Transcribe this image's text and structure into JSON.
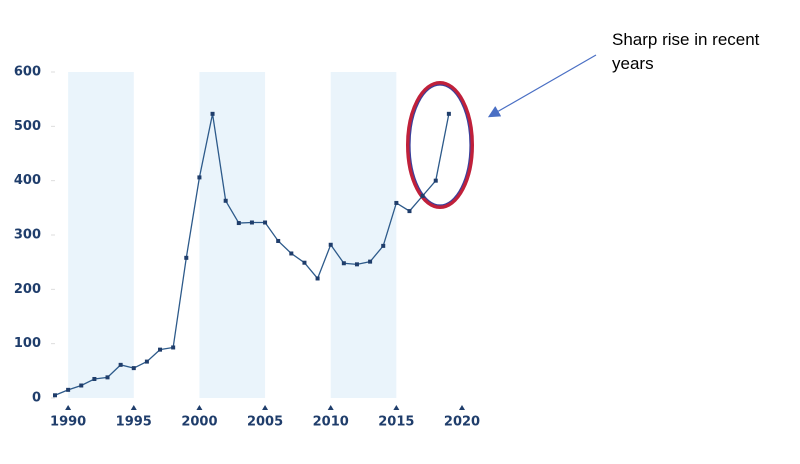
{
  "chart_data": {
    "type": "line",
    "x": [
      1989,
      1990,
      1991,
      1992,
      1993,
      1994,
      1995,
      1996,
      1997,
      1998,
      1999,
      2000,
      2001,
      2002,
      2003,
      2004,
      2005,
      2006,
      2007,
      2008,
      2009,
      2010,
      2011,
      2012,
      2013,
      2014,
      2015,
      2016,
      2017,
      2018,
      2019
    ],
    "values": [
      5,
      15,
      23,
      35,
      38,
      61,
      55,
      67,
      89,
      93,
      258,
      406,
      523,
      363,
      322,
      323,
      323,
      289,
      266,
      249,
      220,
      282,
      248,
      246,
      251,
      280,
      359,
      344,
      372,
      400,
      523
    ],
    "color": "#2d5a8a",
    "xlim": [
      1989,
      2020
    ],
    "xticks": [
      1990,
      1995,
      2000,
      2005,
      2010,
      2015,
      2020
    ],
    "ylim": [
      0,
      600
    ],
    "yticks": [
      0,
      100,
      200,
      300,
      400,
      500,
      600
    ],
    "shaded_ranges": [
      [
        1990,
        1995
      ],
      [
        2000,
        2005
      ],
      [
        2010,
        2015
      ]
    ],
    "shade_color": "#eaf4fb",
    "annotation": "Sharp rise in recent years"
  }
}
